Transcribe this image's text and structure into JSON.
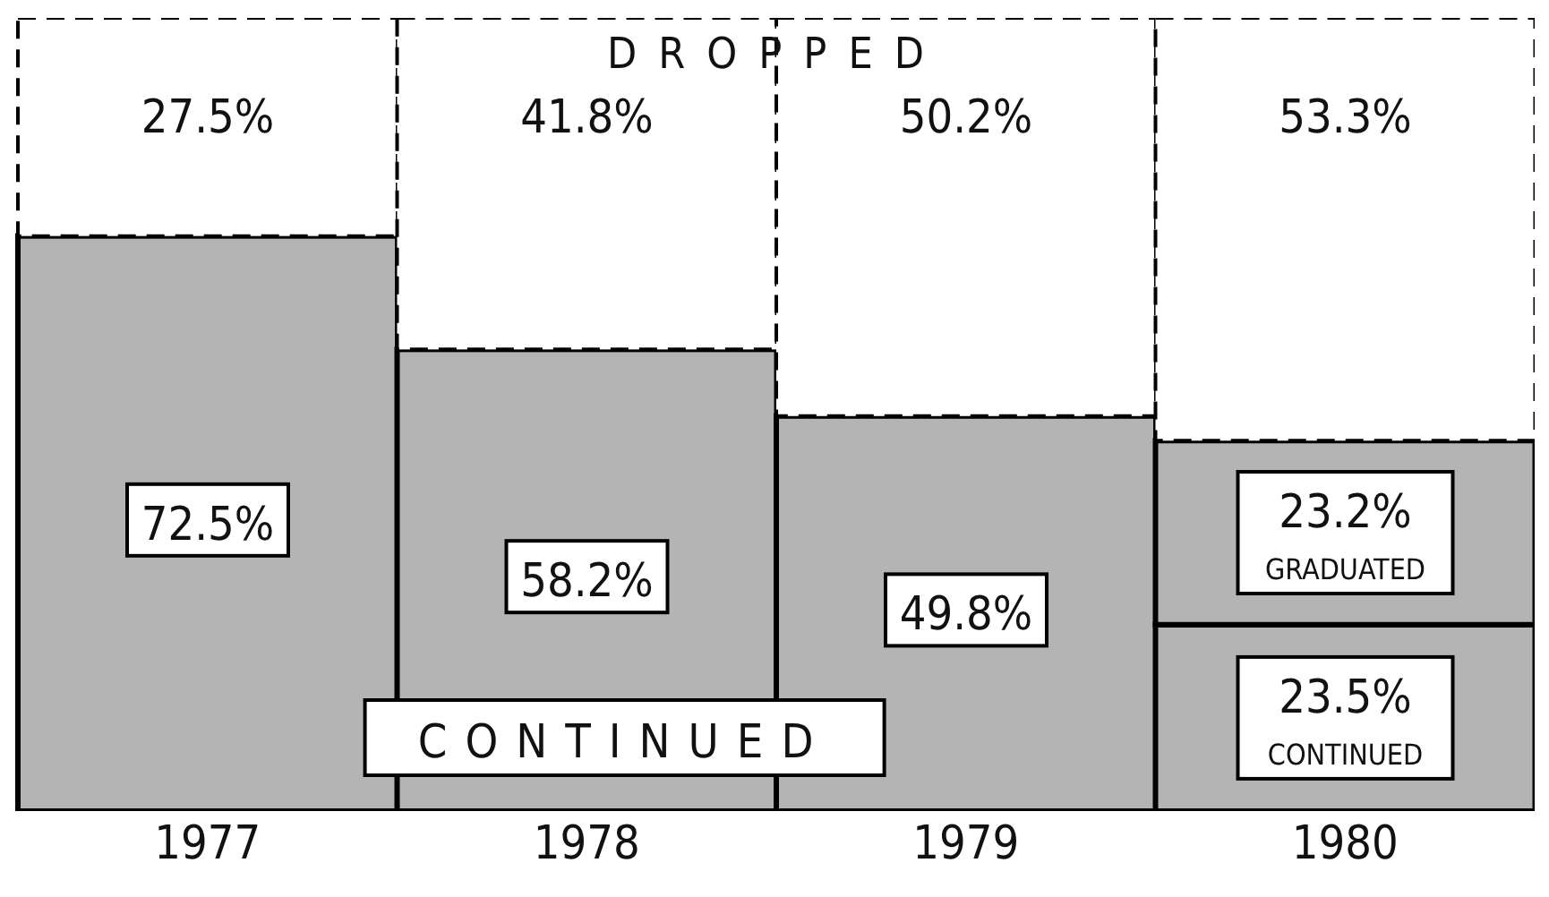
{
  "chart_data": {
    "type": "bar",
    "stacked": true,
    "categories": [
      "1977",
      "1978",
      "1979",
      "1980"
    ],
    "series": [
      {
        "name": "CONTINUED",
        "color": "#b4b4b4",
        "values": [
          72.5,
          58.2,
          49.8,
          23.5
        ],
        "value_labels": [
          "72.5%",
          "58.2%",
          "49.8%",
          "23.5%"
        ]
      },
      {
        "name": "GRADUATED",
        "color": "#b4b4b4",
        "values": [
          null,
          null,
          null,
          23.2
        ],
        "value_labels": [
          null,
          null,
          null,
          "23.2%"
        ]
      },
      {
        "name": "DROPPED",
        "color": "#ffffff",
        "values": [
          27.5,
          41.8,
          50.2,
          53.3
        ],
        "value_labels": [
          "27.5%",
          "41.8%",
          "50.2%",
          "53.3%"
        ]
      }
    ]
  }
}
